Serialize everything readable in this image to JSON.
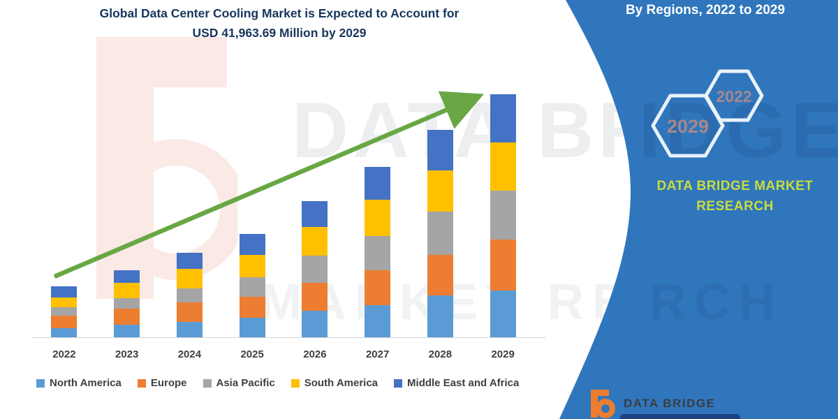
{
  "title": {
    "line1": "Global Data Center Cooling Market is Expected to Account for",
    "line2": "USD 41,963.69 Million by 2029"
  },
  "panel": {
    "header": "By Regions, 2022 to 2029",
    "hexagons": [
      {
        "label": "2029"
      },
      {
        "label": "2022"
      }
    ],
    "brand": {
      "line1": "DATA BRIDGE MARKET",
      "line2": "RESEARCH"
    },
    "logo_text": "DATA BRIDGE"
  },
  "watermarks": {
    "row1_left": "DATA BRI",
    "row1_panel": "IDGE",
    "row2_left": "MARKET RESEA",
    "row2_panel": "RCH"
  },
  "colors": {
    "panel_blue": "#3076BC",
    "title_navy": "#17365D",
    "arrow_green": "#68A744",
    "brand_green": "#C9DC3E",
    "hex_label": "#A8878E",
    "axis_text": "#3F3F3F",
    "logo_orange": "#ED7D31",
    "logo_navy": "#1D4080"
  },
  "chart_data": {
    "type": "bar",
    "stacked": true,
    "units": "USD Million",
    "title": "Global Data Center Cooling Market is Expected to Account for USD 41,963.69 Million by 2029",
    "xlabel": "",
    "ylabel": "",
    "ylim": [
      0,
      45000
    ],
    "grid": false,
    "y_axis_visible": false,
    "legend_position": "bottom",
    "total_2029": 41963.69,
    "categories": [
      "2022",
      "2023",
      "2024",
      "2025",
      "2026",
      "2027",
      "2028",
      "2029"
    ],
    "series": [
      {
        "name": "North America",
        "color": "#5B9BD5",
        "values": [
          1570,
          2170,
          2655,
          3375,
          4580,
          5545,
          7235,
          8080
        ]
      },
      {
        "name": "Europe",
        "color": "#ED7D31",
        "values": [
          2170,
          2775,
          3375,
          3620,
          4825,
          6030,
          6995,
          8805
        ]
      },
      {
        "name": "Asia Pacific",
        "color": "#A5A5A5",
        "values": [
          1450,
          1810,
          2410,
          3375,
          4705,
          5910,
          7475,
          8440
        ]
      },
      {
        "name": "South America",
        "color": "#FFC000",
        "values": [
          1690,
          2655,
          3375,
          3860,
          4945,
          6270,
          7115,
          8320
        ]
      },
      {
        "name": "Middle East and Africa",
        "color": "#4472C4",
        "values": [
          1930,
          2170,
          2775,
          3620,
          4460,
          5670,
          6995,
          8318.69
        ]
      }
    ]
  }
}
